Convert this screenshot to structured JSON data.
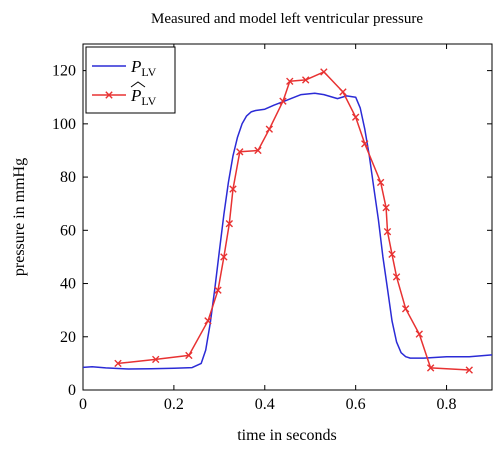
{
  "chart_data": {
    "type": "line",
    "title": "Measured and model left ventricular pressure",
    "xlabel": "time in seconds",
    "ylabel": "pressure in mmHg",
    "xlim": [
      0,
      0.9
    ],
    "ylim": [
      0,
      130
    ],
    "x_ticks": [
      0,
      0.2,
      0.4,
      0.6,
      0.8
    ],
    "x_tick_labels": [
      "0",
      "0.2",
      "0.4",
      "0.6",
      "0.8"
    ],
    "y_ticks": [
      0,
      20,
      40,
      60,
      80,
      100,
      120
    ],
    "y_tick_labels": [
      "0",
      "20",
      "40",
      "60",
      "80",
      "100",
      "120"
    ],
    "grid": false,
    "legend_position": "top-left",
    "series": [
      {
        "name_main": "P",
        "name_sub": "LV",
        "color": "#2b2bd6",
        "marker": "none",
        "x": [
          0,
          0.02,
          0.05,
          0.1,
          0.15,
          0.2,
          0.24,
          0.26,
          0.27,
          0.28,
          0.29,
          0.3,
          0.31,
          0.32,
          0.33,
          0.34,
          0.35,
          0.36,
          0.37,
          0.38,
          0.4,
          0.42,
          0.45,
          0.48,
          0.51,
          0.53,
          0.56,
          0.58,
          0.6,
          0.61,
          0.62,
          0.63,
          0.64,
          0.65,
          0.66,
          0.67,
          0.68,
          0.69,
          0.7,
          0.71,
          0.72,
          0.75,
          0.8,
          0.85,
          0.9
        ],
        "y": [
          8.5,
          8.7,
          8.3,
          7.9,
          8.0,
          8.2,
          8.4,
          10,
          15,
          25,
          38,
          52,
          66,
          78,
          88,
          95,
          100,
          103,
          104.5,
          105,
          105.5,
          107,
          109,
          111,
          111.5,
          111,
          109.5,
          110.5,
          110,
          106,
          98,
          88,
          76,
          64,
          50,
          38,
          26,
          18,
          14,
          12.5,
          12,
          12,
          12.5,
          12.5,
          13.2
        ]
      },
      {
        "name_main": "P",
        "name_sub": "LV",
        "name_hat": true,
        "color": "#e83232",
        "marker": "x",
        "x": [
          0.077,
          0.16,
          0.233,
          0.275,
          0.297,
          0.31,
          0.322,
          0.33,
          0.345,
          0.385,
          0.41,
          0.44,
          0.455,
          0.49,
          0.53,
          0.572,
          0.6,
          0.62,
          0.655,
          0.667,
          0.67,
          0.68,
          0.69,
          0.71,
          0.74,
          0.765,
          0.85
        ],
        "y": [
          10,
          11.5,
          13,
          26,
          37.5,
          50,
          62.5,
          75.5,
          89.5,
          90,
          98,
          108.5,
          116,
          116.5,
          119.5,
          112,
          102.5,
          92.5,
          78,
          68.5,
          59.5,
          51,
          42.5,
          30.5,
          21,
          8.3,
          7.5
        ]
      }
    ]
  }
}
